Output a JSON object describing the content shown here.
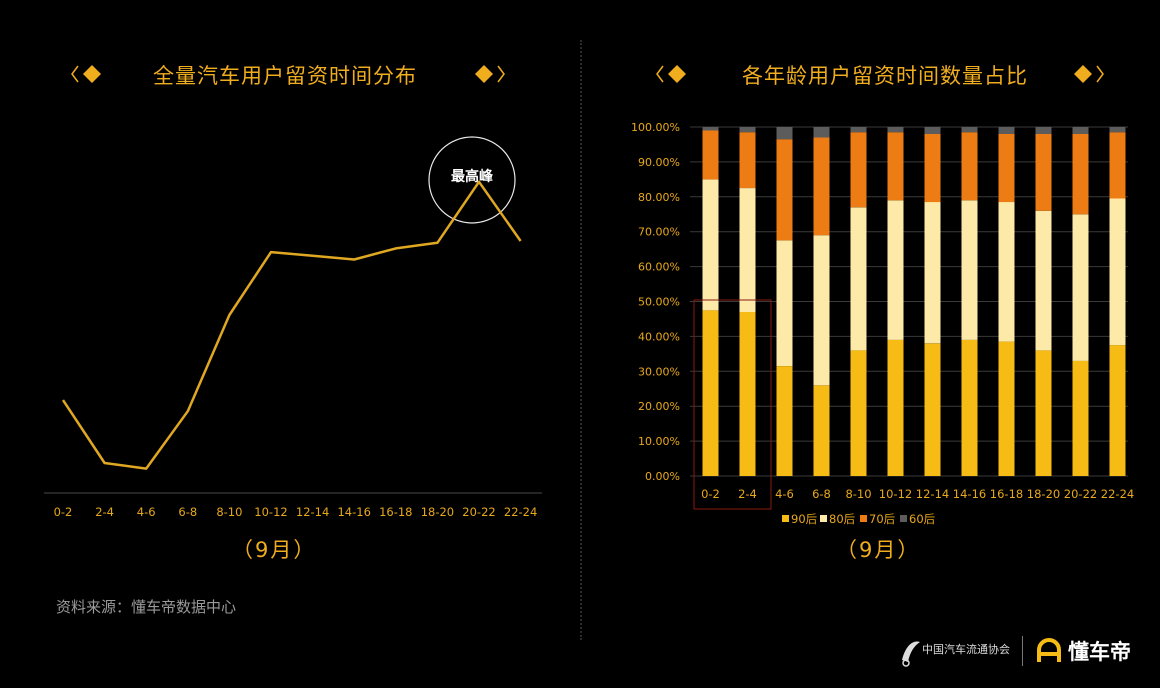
{
  "left_panel": {
    "title": "全量汽车用户留资时间分布",
    "month": "（9月）",
    "peak_label": "最高峰"
  },
  "right_panel": {
    "title": "各年龄用户留资时间数量占比",
    "month": "（9月）"
  },
  "source": "资料来源：懂车帝数据中心",
  "footer": {
    "association": "中国汽车流通协会",
    "brand": "懂车帝"
  },
  "colors": {
    "accent": "#f0ad1e",
    "s90": "#f7bb16",
    "s80": "#fdeaa8",
    "s70": "#ee7c14",
    "s60": "#5c5c5c"
  },
  "chart_data": [
    {
      "type": "line",
      "categories": [
        "0-2",
        "2-4",
        "4-6",
        "6-8",
        "8-10",
        "10-12",
        "12-14",
        "14-16",
        "16-18",
        "18-20",
        "20-22",
        "22-24"
      ],
      "values": [
        22,
        5,
        3.5,
        19,
        45,
        62,
        61,
        60,
        63,
        64.5,
        81,
        65
      ],
      "ylim": [
        0,
        100
      ],
      "grid": false
    },
    {
      "type": "bar",
      "stacked": true,
      "categories": [
        "0-2",
        "2-4",
        "4-6",
        "6-8",
        "8-10",
        "10-12",
        "12-14",
        "14-16",
        "16-18",
        "18-20",
        "20-22",
        "22-24"
      ],
      "yticks": [
        "0.00%",
        "10.00%",
        "20.00%",
        "30.00%",
        "40.00%",
        "50.00%",
        "60.00%",
        "70.00%",
        "80.00%",
        "90.00%",
        "100.00%"
      ],
      "ylim": [
        0,
        100
      ],
      "grid": true,
      "legend_position": "bottom",
      "series": [
        {
          "name": "90后",
          "values": [
            47.5,
            47,
            31.5,
            26,
            36,
            39,
            38,
            39,
            38.5,
            36,
            33,
            37.5
          ]
        },
        {
          "name": "80后",
          "values": [
            37.5,
            35.5,
            36,
            43,
            41,
            40,
            40.5,
            40,
            40,
            40,
            42,
            42
          ]
        },
        {
          "name": "70后",
          "values": [
            14,
            16,
            29,
            28,
            21.5,
            19.5,
            19.5,
            19.5,
            19.5,
            22,
            23,
            19
          ]
        },
        {
          "name": "60后",
          "values": [
            1,
            1.5,
            3.5,
            3,
            1.5,
            1.5,
            2,
            1.5,
            2,
            2,
            2,
            1.5
          ]
        }
      ]
    }
  ]
}
